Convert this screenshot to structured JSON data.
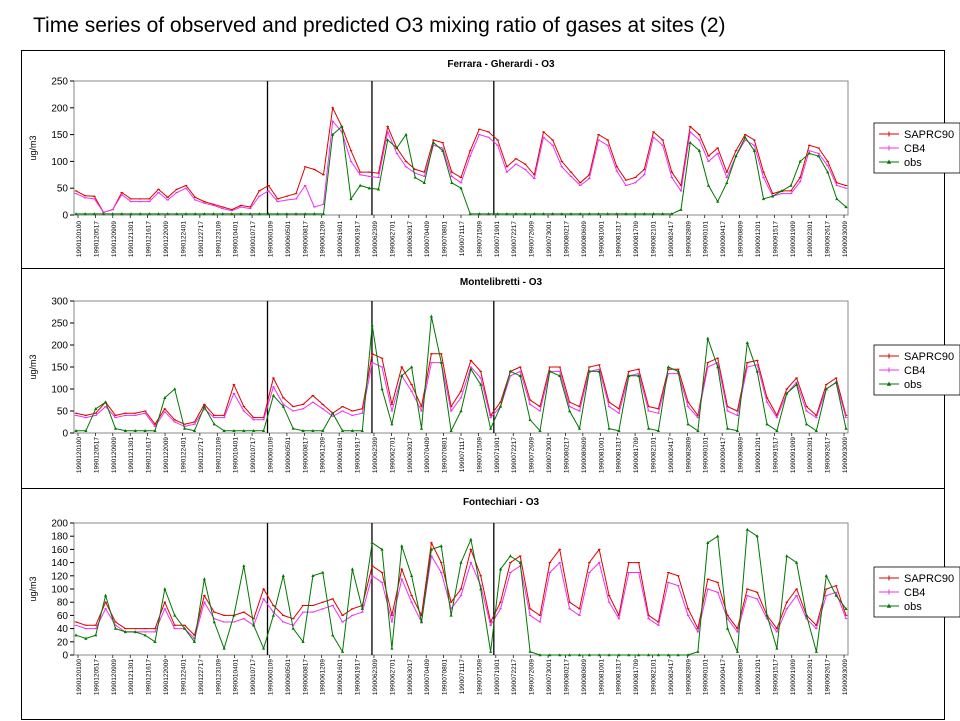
{
  "slide_title": "Time series of observed and predicted O3 mixing ratio of gases at sites (2)",
  "colors": {
    "SAPRC90": "#dd0000",
    "CB4": "#ee33ee",
    "obs": "#007700"
  },
  "chart_data": [
    {
      "type": "line",
      "title": "Ferrara - Gherardi - O3",
      "ylabel": "ug/m3",
      "ylim": [
        0,
        250
      ],
      "yticks": [
        0,
        50,
        100,
        150,
        200,
        250
      ],
      "legend_position": "right",
      "x_tick_labels": [
        "1990120100",
        "1990120517",
        "1990120909",
        "1990121301",
        "1990121617",
        "1990122009",
        "1990122401",
        "1990122717",
        "1990123109",
        "1990010401",
        "1990010717",
        "1990060109",
        "1990060501",
        "1990060817",
        "1990061209",
        "1990061601",
        "1990061917",
        "1990062309",
        "1990062701",
        "1990063017",
        "1990070409",
        "1990070801",
        "1990071117",
        "1990071509",
        "1990071901",
        "1990072217",
        "1990072609",
        "1990073001",
        "1990080217",
        "1990080609",
        "1990081001",
        "1990081317",
        "1990081709",
        "1990082101",
        "1990082417",
        "1990082809",
        "1990090101",
        "1990090417",
        "1990090809",
        "1990091201",
        "1990091517",
        "1990091909",
        "1990092301",
        "1990092617",
        "1990093009"
      ],
      "period_dividers": [
        11,
        17,
        24
      ],
      "series": [
        {
          "name": "SAPRC90",
          "values": [
            45,
            36,
            35,
            5,
            10,
            42,
            30,
            30,
            30,
            48,
            33,
            48,
            55,
            33,
            25,
            20,
            15,
            10,
            18,
            15,
            45,
            55,
            30,
            35,
            40,
            90,
            85,
            75,
            200,
            165,
            120,
            80,
            80,
            78,
            165,
            125,
            100,
            85,
            80,
            140,
            135,
            80,
            70,
            120,
            160,
            155,
            140,
            90,
            105,
            95,
            75,
            155,
            140,
            100,
            80,
            60,
            75,
            150,
            140,
            90,
            65,
            70,
            85,
            155,
            140,
            80,
            55,
            165,
            150,
            110,
            125,
            80,
            120,
            150,
            140,
            80,
            40,
            45,
            45,
            70,
            130,
            125,
            100,
            60,
            55
          ]
        },
        {
          "name": "CB4",
          "values": [
            40,
            32,
            30,
            5,
            10,
            38,
            25,
            25,
            25,
            42,
            28,
            42,
            50,
            28,
            22,
            18,
            12,
            8,
            15,
            12,
            35,
            45,
            25,
            28,
            30,
            55,
            15,
            20,
            175,
            155,
            100,
            75,
            72,
            70,
            155,
            115,
            90,
            78,
            72,
            130,
            125,
            72,
            60,
            110,
            150,
            145,
            130,
            80,
            95,
            85,
            68,
            145,
            130,
            90,
            72,
            55,
            68,
            140,
            130,
            82,
            55,
            60,
            75,
            145,
            130,
            70,
            45,
            155,
            140,
            100,
            115,
            70,
            110,
            140,
            130,
            70,
            35,
            40,
            40,
            62,
            120,
            115,
            92,
            55,
            50
          ]
        },
        {
          "name": "obs",
          "values": [
            2,
            2,
            2,
            2,
            2,
            2,
            2,
            2,
            2,
            2,
            2,
            2,
            2,
            2,
            2,
            2,
            2,
            2,
            2,
            2,
            2,
            2,
            2,
            2,
            2,
            2,
            2,
            2,
            150,
            165,
            30,
            55,
            50,
            48,
            140,
            125,
            150,
            70,
            60,
            135,
            120,
            60,
            50,
            2,
            2,
            2,
            2,
            2,
            2,
            2,
            2,
            2,
            2,
            2,
            2,
            2,
            2,
            2,
            2,
            2,
            2,
            2,
            2,
            2,
            2,
            2,
            10,
            135,
            120,
            55,
            25,
            60,
            110,
            145,
            120,
            30,
            35,
            45,
            55,
            100,
            115,
            110,
            80,
            30,
            15
          ]
        }
      ]
    },
    {
      "type": "line",
      "title": "Montelibretti - O3",
      "ylabel": "ug/m3",
      "ylim": [
        0,
        300
      ],
      "yticks": [
        0,
        50,
        100,
        150,
        200,
        250,
        300
      ],
      "legend_position": "right",
      "x_tick_labels": [
        "1990120100",
        "1990120517",
        "1990120909",
        "1990121301",
        "1990121617",
        "1990122009",
        "1990122401",
        "1990122717",
        "1990123109",
        "1990010401",
        "1990010717",
        "1990060109",
        "1990060501",
        "1990060817",
        "1990061209",
        "1990061601",
        "1990061917",
        "1990062309",
        "1990062701",
        "1990063017",
        "1990070409",
        "1990070801",
        "1990071117",
        "1990071509",
        "1990071901",
        "1990072217",
        "1990072609",
        "1990073001",
        "1990080217",
        "1990080609",
        "1990081001",
        "1990081317",
        "1990081709",
        "1990082101",
        "1990082417",
        "1990082809",
        "1990090101",
        "1990090417",
        "1990090809",
        "1990091201",
        "1990091517",
        "1990091909",
        "1990092301",
        "1990092617",
        "1990093009"
      ],
      "period_dividers": [
        11,
        17,
        24
      ],
      "series": [
        {
          "name": "SAPRC90",
          "values": [
            45,
            40,
            45,
            70,
            40,
            45,
            45,
            50,
            20,
            55,
            30,
            20,
            25,
            65,
            40,
            40,
            110,
            60,
            35,
            35,
            125,
            80,
            60,
            65,
            85,
            65,
            45,
            60,
            50,
            55,
            180,
            170,
            65,
            150,
            110,
            60,
            180,
            180,
            60,
            95,
            165,
            140,
            40,
            70,
            140,
            150,
            75,
            60,
            150,
            150,
            70,
            60,
            150,
            155,
            70,
            55,
            140,
            145,
            60,
            55,
            145,
            145,
            70,
            40,
            160,
            170,
            60,
            50,
            160,
            165,
            80,
            40,
            100,
            125,
            60,
            40,
            110,
            125,
            40
          ]
        },
        {
          "name": "CB4",
          "values": [
            40,
            35,
            40,
            60,
            35,
            40,
            40,
            45,
            15,
            48,
            25,
            15,
            20,
            55,
            35,
            35,
            90,
            50,
            30,
            30,
            105,
            65,
            50,
            55,
            70,
            55,
            38,
            50,
            40,
            45,
            160,
            150,
            50,
            130,
            95,
            50,
            160,
            160,
            50,
            80,
            150,
            125,
            35,
            60,
            130,
            140,
            65,
            50,
            140,
            140,
            60,
            50,
            140,
            145,
            60,
            45,
            130,
            135,
            50,
            45,
            135,
            135,
            60,
            35,
            150,
            160,
            50,
            40,
            150,
            155,
            70,
            35,
            90,
            115,
            50,
            35,
            100,
            115,
            35
          ]
        },
        {
          "name": "obs",
          "values": [
            5,
            5,
            55,
            70,
            10,
            5,
            5,
            5,
            5,
            80,
            100,
            10,
            5,
            60,
            20,
            5,
            5,
            5,
            5,
            5,
            85,
            60,
            10,
            5,
            5,
            5,
            45,
            5,
            5,
            5,
            245,
            100,
            20,
            130,
            150,
            10,
            265,
            160,
            5,
            50,
            145,
            110,
            10,
            60,
            140,
            130,
            30,
            5,
            140,
            130,
            50,
            10,
            140,
            140,
            10,
            5,
            130,
            130,
            10,
            5,
            150,
            140,
            20,
            5,
            215,
            150,
            10,
            5,
            205,
            140,
            20,
            5,
            90,
            110,
            20,
            5,
            100,
            115,
            10
          ]
        }
      ]
    },
    {
      "type": "line",
      "title": "Fontechiari - O3",
      "ylabel": "ug/m3",
      "ylim": [
        0,
        200
      ],
      "yticks": [
        0,
        20,
        40,
        60,
        80,
        100,
        120,
        140,
        160,
        180,
        200
      ],
      "legend_position": "right",
      "x_tick_labels": [
        "1990120100",
        "1990120517",
        "1990120909",
        "1990121301",
        "1990121617",
        "1990122009",
        "1990122401",
        "1990122717",
        "1990123109",
        "1990010401",
        "1990010717",
        "1990060109",
        "1990060501",
        "1990060817",
        "1990061209",
        "1990061601",
        "1990061917",
        "1990062309",
        "1990062701",
        "1990063017",
        "1990070409",
        "1990070801",
        "1990071117",
        "1990071509",
        "1990071901",
        "1990072217",
        "1990072609",
        "1990073001",
        "1990080217",
        "1990080609",
        "1990081001",
        "1990081317",
        "1990081709",
        "1990082101",
        "1990082417",
        "1990082809",
        "1990090101",
        "1990090417",
        "1990090809",
        "1990091201",
        "1990091517",
        "1990091909",
        "1990092301",
        "1990092617",
        "1990093009"
      ],
      "period_dividers": [
        11,
        17,
        24
      ],
      "series": [
        {
          "name": "SAPRC90",
          "values": [
            50,
            45,
            45,
            80,
            50,
            40,
            40,
            40,
            40,
            80,
            45,
            45,
            30,
            90,
            65,
            60,
            60,
            65,
            55,
            100,
            75,
            60,
            55,
            75,
            75,
            80,
            85,
            60,
            70,
            75,
            135,
            125,
            60,
            130,
            90,
            60,
            170,
            140,
            80,
            100,
            160,
            120,
            50,
            80,
            140,
            150,
            70,
            60,
            140,
            160,
            80,
            70,
            140,
            160,
            90,
            60,
            140,
            140,
            60,
            50,
            125,
            120,
            70,
            40,
            115,
            110,
            60,
            40,
            100,
            95,
            60,
            40,
            80,
            100,
            60,
            45,
            100,
            105,
            60
          ]
        },
        {
          "name": "CB4",
          "values": [
            45,
            40,
            40,
            70,
            45,
            35,
            35,
            35,
            35,
            70,
            40,
            40,
            25,
            80,
            55,
            50,
            50,
            55,
            45,
            85,
            65,
            50,
            45,
            65,
            65,
            70,
            75,
            50,
            60,
            65,
            120,
            110,
            50,
            115,
            80,
            50,
            150,
            125,
            70,
            90,
            140,
            105,
            45,
            70,
            125,
            135,
            60,
            50,
            125,
            140,
            70,
            60,
            125,
            140,
            80,
            55,
            125,
            125,
            55,
            45,
            110,
            105,
            60,
            35,
            100,
            95,
            55,
            35,
            90,
            85,
            55,
            35,
            70,
            90,
            55,
            40,
            90,
            95,
            55
          ]
        },
        {
          "name": "obs",
          "values": [
            30,
            25,
            30,
            90,
            40,
            35,
            35,
            30,
            20,
            100,
            60,
            40,
            20,
            115,
            50,
            10,
            60,
            135,
            45,
            10,
            60,
            120,
            40,
            20,
            120,
            125,
            30,
            5,
            130,
            70,
            170,
            160,
            10,
            165,
            120,
            50,
            160,
            165,
            60,
            140,
            175,
            100,
            5,
            130,
            150,
            140,
            5,
            0,
            0,
            0,
            0,
            0,
            0,
            0,
            0,
            0,
            0,
            0,
            0,
            0,
            0,
            0,
            0,
            5,
            170,
            180,
            40,
            5,
            190,
            180,
            60,
            10,
            150,
            140,
            60,
            5,
            120,
            90,
            70
          ]
        }
      ]
    }
  ]
}
